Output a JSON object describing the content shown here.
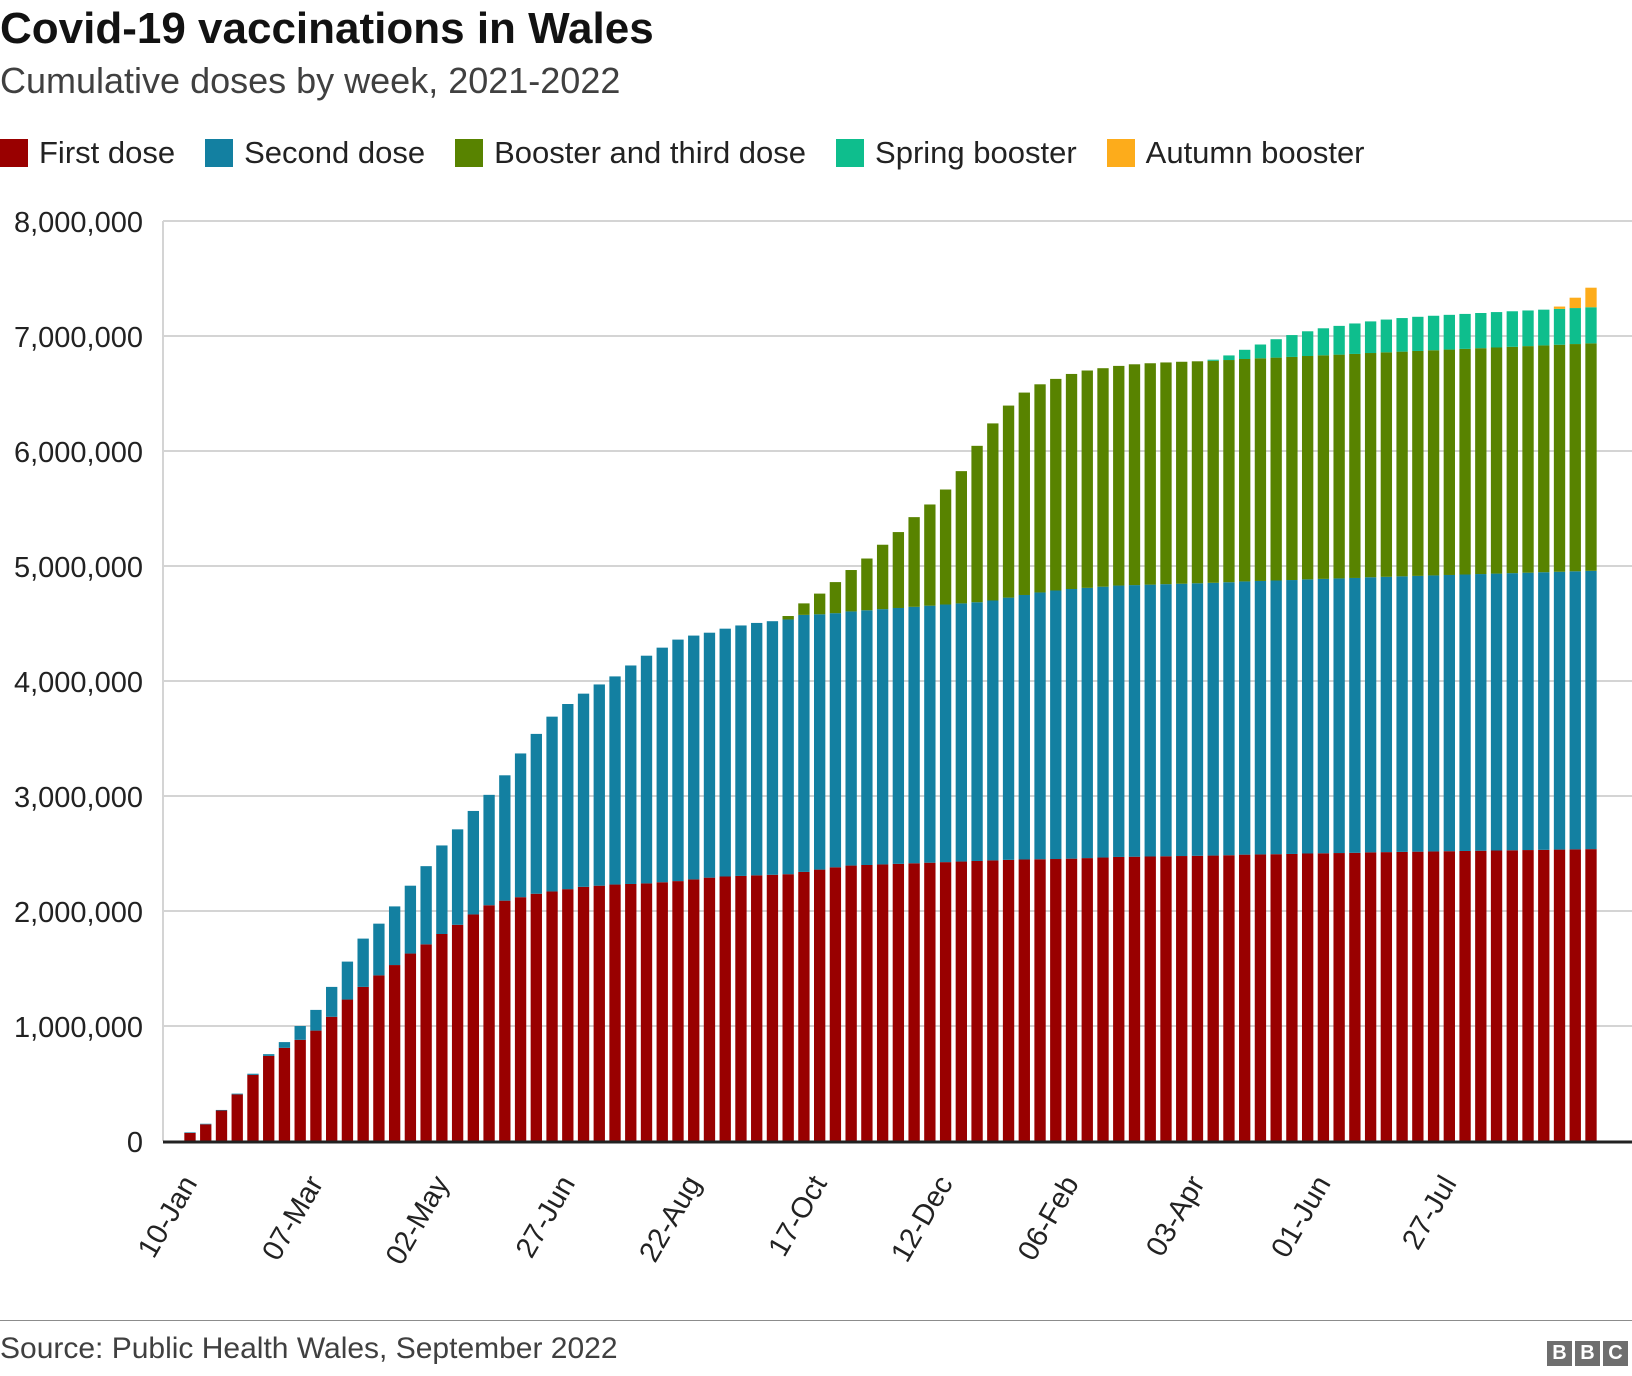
{
  "chart_data": {
    "type": "bar",
    "stacked": true,
    "title": "Covid-19 vaccinations in Wales",
    "subtitle": "Cumulative doses by week, 2021-2022",
    "legend_position": "top-left",
    "grid": true,
    "ylim": [
      0,
      8000000
    ],
    "y_ticks": [
      "0",
      "1,000,000",
      "2,000,000",
      "3,000,000",
      "4,000,000",
      "5,000,000",
      "6,000,000",
      "7,000,000",
      "8,000,000"
    ],
    "x_tick_labels": [
      "10-Jan",
      "07-Mar",
      "02-May",
      "27-Jun",
      "22-Aug",
      "17-Oct",
      "12-Dec",
      "06-Feb",
      "03-Apr",
      "01-Jun",
      "27-Jul"
    ],
    "x_tick_bar_index": [
      0,
      8,
      16,
      24,
      32,
      40,
      48,
      56,
      64,
      72,
      80
    ],
    "series": [
      {
        "name": "First dose",
        "color": "#990000",
        "values": [
          70000,
          145000,
          265000,
          405000,
          575000,
          740000,
          810000,
          880000,
          960000,
          1080000,
          1230000,
          1340000,
          1440000,
          1530000,
          1630000,
          1710000,
          1800000,
          1880000,
          1970000,
          2050000,
          2090000,
          2120000,
          2150000,
          2170000,
          2190000,
          2210000,
          2220000,
          2230000,
          2235000,
          2240000,
          2250000,
          2260000,
          2275000,
          2290000,
          2300000,
          2305000,
          2310000,
          2315000,
          2320000,
          2340000,
          2360000,
          2380000,
          2395000,
          2400000,
          2405000,
          2410000,
          2415000,
          2420000,
          2425000,
          2430000,
          2435000,
          2440000,
          2445000,
          2448000,
          2450000,
          2452000,
          2455000,
          2460000,
          2465000,
          2470000,
          2472000,
          2474000,
          2476000,
          2478000,
          2480000,
          2482000,
          2485000,
          2490000,
          2492000,
          2494000,
          2496000,
          2500000,
          2502000,
          2504000,
          2506000,
          2510000,
          2512000,
          2514000,
          2516000,
          2518000,
          2520000,
          2522000,
          2524000,
          2526000,
          2528000,
          2530000,
          2532000,
          2534000,
          2536000,
          2538000
        ]
      },
      {
        "name": "Second dose",
        "color": "#1380a1",
        "values": [
          5000,
          5000,
          5000,
          7000,
          10000,
          15000,
          50000,
          120000,
          180000,
          260000,
          330000,
          420000,
          450000,
          510000,
          590000,
          680000,
          770000,
          830000,
          900000,
          960000,
          1090000,
          1250000,
          1390000,
          1520000,
          1610000,
          1680000,
          1750000,
          1810000,
          1900000,
          1980000,
          2040000,
          2100000,
          2120000,
          2130000,
          2155000,
          2178000,
          2195000,
          2205000,
          2215000,
          2235000,
          2220000,
          2210000,
          2210000,
          2215000,
          2220000,
          2225000,
          2230000,
          2235000,
          2240000,
          2245000,
          2250000,
          2260000,
          2280000,
          2300000,
          2320000,
          2335000,
          2345000,
          2350000,
          2355000,
          2360000,
          2362000,
          2364000,
          2366000,
          2368000,
          2370000,
          2372000,
          2374000,
          2376000,
          2378000,
          2380000,
          2382000,
          2384000,
          2386000,
          2388000,
          2390000,
          2392000,
          2394000,
          2396000,
          2398000,
          2400000,
          2402000,
          2404000,
          2406000,
          2408000,
          2410000,
          2412000,
          2414000,
          2416000,
          2418000,
          2420000
        ]
      },
      {
        "name": "Booster and third dose",
        "color": "#588300",
        "values": [
          0,
          0,
          0,
          0,
          0,
          0,
          0,
          0,
          0,
          0,
          0,
          0,
          0,
          0,
          0,
          0,
          0,
          0,
          0,
          0,
          0,
          0,
          0,
          0,
          0,
          0,
          0,
          0,
          0,
          0,
          0,
          0,
          0,
          0,
          0,
          0,
          0,
          0,
          30000,
          100000,
          180000,
          270000,
          360000,
          450000,
          560000,
          660000,
          780000,
          880000,
          1000000,
          1150000,
          1360000,
          1540000,
          1670000,
          1760000,
          1810000,
          1840000,
          1870000,
          1890000,
          1900000,
          1910000,
          1920000,
          1925000,
          1928000,
          1930000,
          1930000,
          1930000,
          1932000,
          1934000,
          1936000,
          1938000,
          1940000,
          1942000,
          1944000,
          1946000,
          1948000,
          1950000,
          1952000,
          1954000,
          1956000,
          1958000,
          1960000,
          1962000,
          1964000,
          1966000,
          1968000,
          1970000,
          1972000,
          1974000,
          1976000,
          1978000
        ]
      },
      {
        "name": "Spring booster",
        "color": "#0ebe8d",
        "values": [
          0,
          0,
          0,
          0,
          0,
          0,
          0,
          0,
          0,
          0,
          0,
          0,
          0,
          0,
          0,
          0,
          0,
          0,
          0,
          0,
          0,
          0,
          0,
          0,
          0,
          0,
          0,
          0,
          0,
          0,
          0,
          0,
          0,
          0,
          0,
          0,
          0,
          0,
          0,
          0,
          0,
          0,
          0,
          0,
          0,
          0,
          0,
          0,
          0,
          0,
          0,
          0,
          0,
          0,
          0,
          0,
          0,
          0,
          0,
          0,
          0,
          0,
          0,
          0,
          0,
          10000,
          40000,
          80000,
          120000,
          160000,
          190000,
          215000,
          235000,
          250000,
          265000,
          275000,
          285000,
          292000,
          297000,
          300000,
          302000,
          304000,
          306000,
          308000,
          309000,
          310000,
          311000,
          312000,
          313000,
          314000
        ]
      },
      {
        "name": "Autumn booster",
        "color": "#fdac1b",
        "values": [
          0,
          0,
          0,
          0,
          0,
          0,
          0,
          0,
          0,
          0,
          0,
          0,
          0,
          0,
          0,
          0,
          0,
          0,
          0,
          0,
          0,
          0,
          0,
          0,
          0,
          0,
          0,
          0,
          0,
          0,
          0,
          0,
          0,
          0,
          0,
          0,
          0,
          0,
          0,
          0,
          0,
          0,
          0,
          0,
          0,
          0,
          0,
          0,
          0,
          0,
          0,
          0,
          0,
          0,
          0,
          0,
          0,
          0,
          0,
          0,
          0,
          0,
          0,
          0,
          0,
          0,
          0,
          0,
          0,
          0,
          0,
          0,
          0,
          0,
          0,
          0,
          0,
          0,
          0,
          0,
          0,
          0,
          0,
          0,
          0,
          0,
          0,
          20000,
          90000,
          170000
        ]
      }
    ]
  },
  "footer": {
    "source": "Source: Public Health Wales, September 2022",
    "logo_letters": [
      "B",
      "B",
      "C"
    ]
  }
}
